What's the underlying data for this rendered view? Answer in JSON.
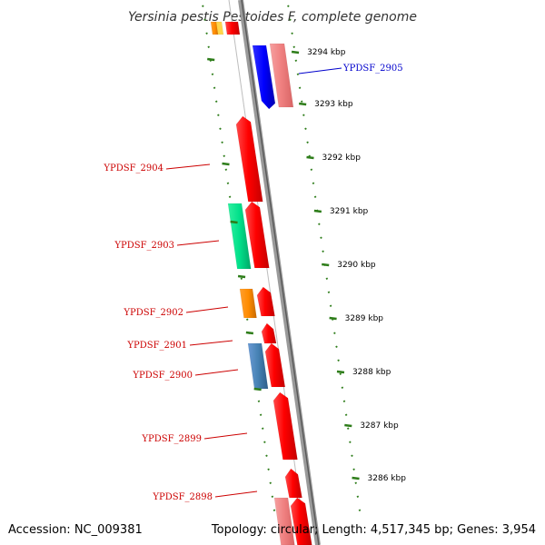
{
  "title": "Yersinia pestis Pestoides F, complete genome",
  "footer": {
    "accession": "Accession: NC_009381",
    "topology": "Topology: circular; Length: 4,517,345 bp; Genes: 3,954"
  },
  "colors": {
    "backbone": "#8a8a8a",
    "tick": "#2e7d1a",
    "label_red": "#cc0000",
    "label_blue": "#0000cc"
  },
  "kbp_ticks": [
    "3294 kbp",
    "3293 kbp",
    "3292 kbp",
    "3291 kbp",
    "3290 kbp",
    "3289 kbp",
    "3288 kbp",
    "3287 kbp",
    "3286 kbp"
  ],
  "gene_labels": [
    {
      "name": "YPDSF_2905",
      "side": "right",
      "color": "#0000cc"
    },
    {
      "name": "YPDSF_2904",
      "side": "left",
      "color": "#cc0000"
    },
    {
      "name": "YPDSF_2903",
      "side": "left",
      "color": "#cc0000"
    },
    {
      "name": "YPDSF_2902",
      "side": "left",
      "color": "#cc0000"
    },
    {
      "name": "YPDSF_2901",
      "side": "left",
      "color": "#cc0000"
    },
    {
      "name": "YPDSF_2900",
      "side": "left",
      "color": "#cc0000"
    },
    {
      "name": "YPDSF_2899",
      "side": "left",
      "color": "#cc0000"
    },
    {
      "name": "YPDSF_2898",
      "side": "left",
      "color": "#cc0000"
    }
  ]
}
